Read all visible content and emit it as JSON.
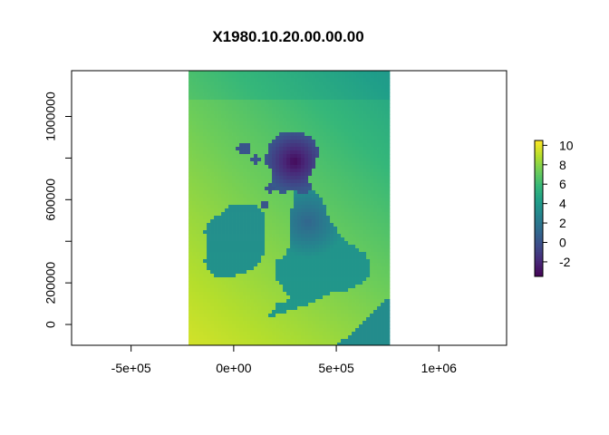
{
  "chart_data": {
    "type": "heatmap",
    "title": "X1980.10.20.00.00.00",
    "xlabel": "",
    "ylabel": "",
    "xlim": [
      -790000,
      1330000
    ],
    "ylim": [
      -100000,
      1220000
    ],
    "x_ticks": [
      -500000,
      0,
      500000,
      1000000
    ],
    "x_tick_labels": [
      "-5e+05",
      "0e+00",
      "5e+05",
      "1e+06"
    ],
    "y_ticks": [
      0,
      200000,
      600000,
      1000000
    ],
    "y_tick_labels": [
      "0",
      "200000",
      "600000",
      "1000000"
    ],
    "y_minor_ticks": [
      400000,
      800000
    ],
    "raster_extent": {
      "xmin": -220000,
      "xmax": 760000,
      "ymin": -100000,
      "ymax": 1220000
    },
    "colorbar": {
      "min": -3.5,
      "max": 10.5,
      "ticks": [
        -2,
        0,
        2,
        4,
        6,
        8,
        10
      ],
      "tick_labels": [
        "-2",
        "0",
        "2",
        "4",
        "6",
        "8",
        "10"
      ],
      "palette": [
        "#440154",
        "#482878",
        "#3E4A89",
        "#31688E",
        "#26828E",
        "#1F9E89",
        "#35B779",
        "#6DCD59",
        "#B4DE2C",
        "#FDE725"
      ]
    },
    "legend_position": "right",
    "grid": false
  }
}
